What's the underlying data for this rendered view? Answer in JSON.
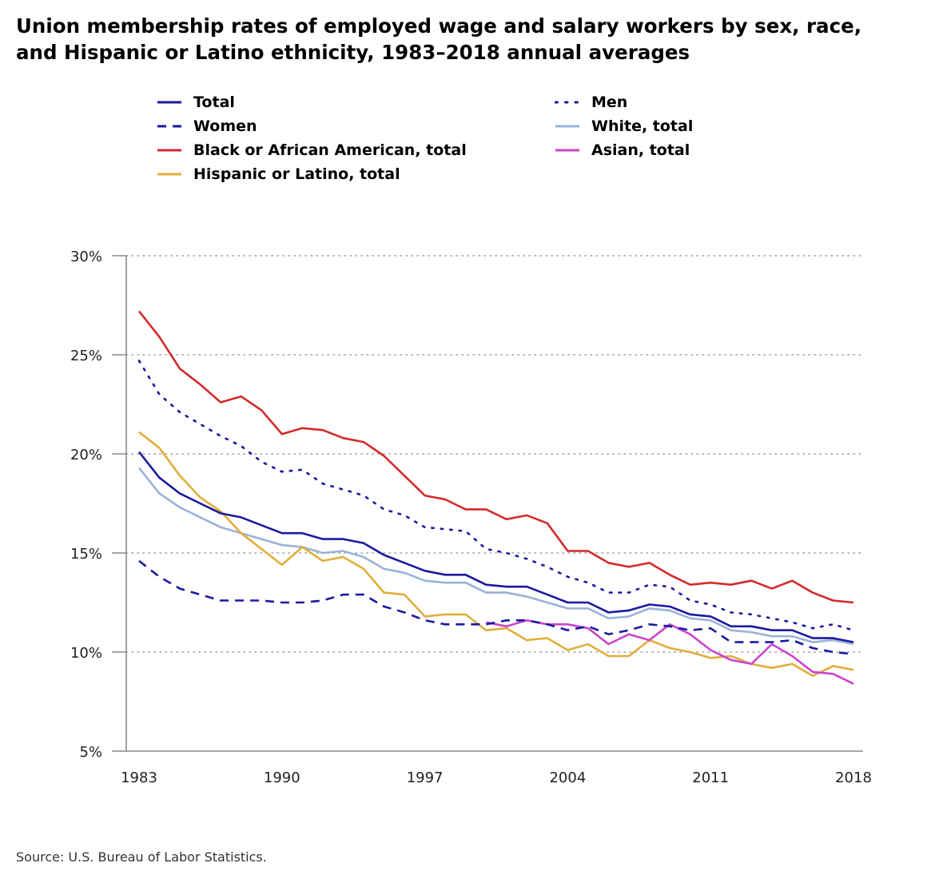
{
  "title": "Union membership rates of employed wage and salary workers by sex, race, and Hispanic or Latino ethnicity, 1983–2018 annual averages",
  "source": "Source: U.S. Bureau of Labor Statistics.",
  "chart_data": {
    "type": "line",
    "title": "Union membership rates of employed wage and salary workers by sex, race, and Hispanic or Latino ethnicity, 1983–2018 annual averages",
    "xlabel": "",
    "ylabel": "",
    "xlim": [
      1983,
      2018
    ],
    "ylim": [
      5,
      30
    ],
    "yticks": [
      5,
      10,
      15,
      20,
      25,
      30
    ],
    "ytick_labels": [
      "5%",
      "10%",
      "15%",
      "20%",
      "25%",
      "30%"
    ],
    "xticks": [
      1983,
      1990,
      1997,
      2004,
      2011,
      2018
    ],
    "xtick_labels": [
      "1983",
      "1990",
      "1997",
      "2004",
      "2011",
      "2018"
    ],
    "grid": "horizontal dotted",
    "legend_position": "top",
    "x": [
      1983,
      1984,
      1985,
      1986,
      1987,
      1988,
      1989,
      1990,
      1991,
      1992,
      1993,
      1994,
      1995,
      1996,
      1997,
      1998,
      1999,
      2000,
      2001,
      2002,
      2003,
      2004,
      2005,
      2006,
      2007,
      2008,
      2009,
      2010,
      2011,
      2012,
      2013,
      2014,
      2015,
      2016,
      2017,
      2018
    ],
    "series": [
      {
        "name": "Total",
        "color": "#1a1aa0",
        "style": "solid",
        "values": [
          20.1,
          18.8,
          18.0,
          17.5,
          17.0,
          16.8,
          16.4,
          16.0,
          16.0,
          15.7,
          15.7,
          15.5,
          14.9,
          14.5,
          14.1,
          13.9,
          13.9,
          13.4,
          13.3,
          13.3,
          12.9,
          12.5,
          12.5,
          12.0,
          12.1,
          12.4,
          12.3,
          11.9,
          11.8,
          11.3,
          11.3,
          11.1,
          11.1,
          10.7,
          10.7,
          10.5
        ]
      },
      {
        "name": "Men",
        "color": "#1a1aa0",
        "style": "dotted",
        "values": [
          24.7,
          23.0,
          22.1,
          21.5,
          20.9,
          20.4,
          19.6,
          19.1,
          19.2,
          18.5,
          18.2,
          17.9,
          17.2,
          16.9,
          16.3,
          16.2,
          16.1,
          15.2,
          15.0,
          14.7,
          14.3,
          13.8,
          13.5,
          13.0,
          13.0,
          13.4,
          13.3,
          12.6,
          12.4,
          12.0,
          11.9,
          11.7,
          11.5,
          11.2,
          11.4,
          11.1
        ]
      },
      {
        "name": "Women",
        "color": "#1a1aa0",
        "style": "dashed",
        "values": [
          14.6,
          13.8,
          13.2,
          12.9,
          12.6,
          12.6,
          12.6,
          12.5,
          12.5,
          12.6,
          12.9,
          12.9,
          12.3,
          12.0,
          11.6,
          11.4,
          11.4,
          11.4,
          11.6,
          11.6,
          11.4,
          11.1,
          11.3,
          10.9,
          11.1,
          11.4,
          11.3,
          11.1,
          11.2,
          10.5,
          10.5,
          10.5,
          10.6,
          10.2,
          10.0,
          9.9
        ]
      },
      {
        "name": "White, total",
        "color": "#9ab2d8",
        "style": "solid",
        "values": [
          19.3,
          18.0,
          17.3,
          16.8,
          16.3,
          16.0,
          15.7,
          15.4,
          15.3,
          15.0,
          15.1,
          14.8,
          14.2,
          14.0,
          13.6,
          13.5,
          13.5,
          13.0,
          13.0,
          12.8,
          12.5,
          12.2,
          12.2,
          11.7,
          11.8,
          12.2,
          12.1,
          11.7,
          11.6,
          11.1,
          11.0,
          10.8,
          10.8,
          10.5,
          10.6,
          10.4
        ]
      },
      {
        "name": "Black or African American, total",
        "color": "#d42a2a",
        "style": "solid",
        "values": [
          27.2,
          25.9,
          24.3,
          23.5,
          22.6,
          22.9,
          22.2,
          21.0,
          21.3,
          21.2,
          20.8,
          20.6,
          19.9,
          18.9,
          17.9,
          17.7,
          17.2,
          17.2,
          16.7,
          16.9,
          16.5,
          15.1,
          15.1,
          14.5,
          14.3,
          14.5,
          13.9,
          13.4,
          13.5,
          13.4,
          13.6,
          13.2,
          13.6,
          13.0,
          12.6,
          12.5
        ]
      },
      {
        "name": "Asian, total",
        "color": "#cc44cc",
        "style": "solid",
        "values": [
          null,
          null,
          null,
          null,
          null,
          null,
          null,
          null,
          null,
          null,
          null,
          null,
          null,
          null,
          null,
          null,
          null,
          11.5,
          11.3,
          11.6,
          11.4,
          11.4,
          11.2,
          10.4,
          10.9,
          10.6,
          11.4,
          10.9,
          10.1,
          9.6,
          9.4,
          10.4,
          9.8,
          9.0,
          8.9,
          8.4
        ]
      },
      {
        "name": "Hispanic or Latino, total",
        "color": "#e0ae3a",
        "style": "solid",
        "values": [
          21.1,
          20.3,
          18.9,
          17.8,
          17.1,
          16.0,
          15.2,
          14.4,
          15.3,
          14.6,
          14.8,
          14.2,
          13.0,
          12.9,
          11.8,
          11.9,
          11.9,
          11.1,
          11.2,
          10.6,
          10.7,
          10.1,
          10.4,
          9.8,
          9.8,
          10.6,
          10.2,
          10.0,
          9.7,
          9.8,
          9.4,
          9.2,
          9.4,
          8.8,
          9.3,
          9.1
        ]
      }
    ]
  }
}
